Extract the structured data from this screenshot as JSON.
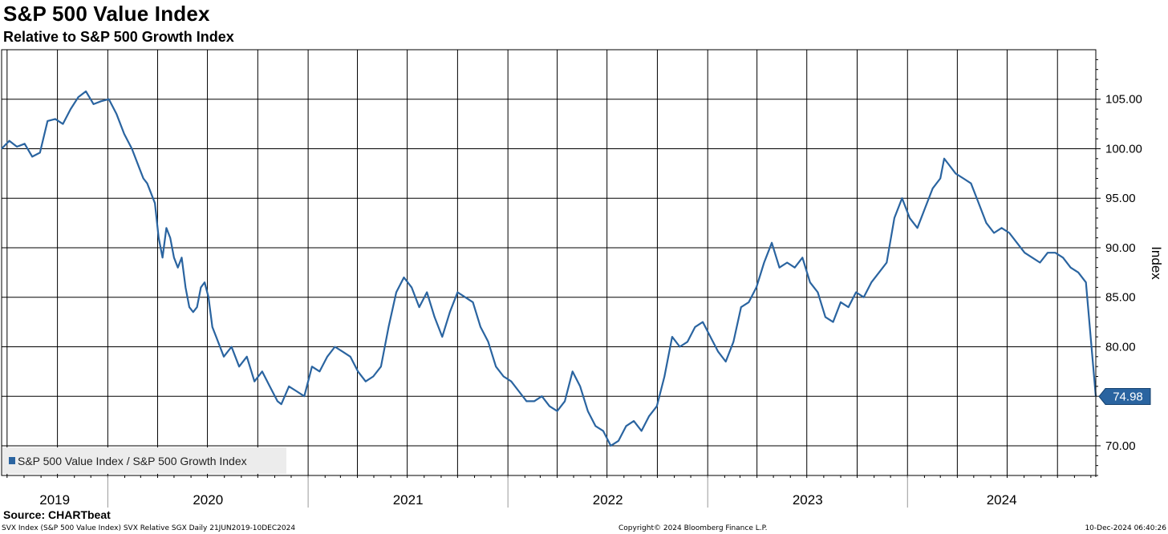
{
  "title": "S&P 500 Value Index",
  "subtitle": "Relative to S&P 500 Growth Index",
  "source": "Source: CHARTbeat",
  "footer": {
    "left": "SVX Index (S&P 500 Value Index) SVX Relative SGX  Daily 21JUN2019-10DEC2024",
    "center": "Copyright© 2024 Bloomberg Finance L.P.",
    "right": "10-Dec-2024 06:40:26"
  },
  "colors": {
    "line": "#2a64a0",
    "grid": "#000000",
    "badge": "#2a64a0"
  },
  "chart_data": {
    "type": "line",
    "title": "S&P 500 Value Index",
    "subtitle": "Relative to S&P 500 Growth Index",
    "ylabel": "Index",
    "ylim": [
      67,
      110
    ],
    "y_ticks": [
      70,
      75,
      80,
      85,
      90,
      95,
      100,
      105
    ],
    "y_tick_labels": [
      "70.00",
      "",
      "80.00",
      "85.00",
      "90.00",
      "95.00",
      "100.00",
      "105.00"
    ],
    "x_range": [
      "2019-06-21",
      "2024-12-10"
    ],
    "x_labels": [
      "2019",
      "2020",
      "2021",
      "2022",
      "2023",
      "2024"
    ],
    "grid": true,
    "legend_position": "bottom-left",
    "last_value_label": "74.98",
    "series": [
      {
        "name": "S&P 500 Value Index / S&P 500 Growth Index",
        "points": [
          [
            "2019-06-21",
            100.0
          ],
          [
            "2019-07-05",
            100.8
          ],
          [
            "2019-07-19",
            100.2
          ],
          [
            "2019-08-02",
            100.5
          ],
          [
            "2019-08-16",
            99.2
          ],
          [
            "2019-08-30",
            99.6
          ],
          [
            "2019-09-13",
            102.8
          ],
          [
            "2019-09-27",
            103.0
          ],
          [
            "2019-10-11",
            102.5
          ],
          [
            "2019-10-25",
            104.0
          ],
          [
            "2019-11-08",
            105.2
          ],
          [
            "2019-11-22",
            105.8
          ],
          [
            "2019-12-06",
            104.5
          ],
          [
            "2019-12-20",
            104.8
          ],
          [
            "2020-01-03",
            105.0
          ],
          [
            "2020-01-17",
            103.5
          ],
          [
            "2020-01-31",
            101.5
          ],
          [
            "2020-02-14",
            100.0
          ],
          [
            "2020-02-28",
            98.0
          ],
          [
            "2020-03-06",
            97.0
          ],
          [
            "2020-03-13",
            96.5
          ],
          [
            "2020-03-27",
            94.5
          ],
          [
            "2020-04-03",
            91.0
          ],
          [
            "2020-04-10",
            89.0
          ],
          [
            "2020-04-17",
            92.0
          ],
          [
            "2020-04-24",
            91.0
          ],
          [
            "2020-05-01",
            89.0
          ],
          [
            "2020-05-08",
            88.0
          ],
          [
            "2020-05-15",
            89.0
          ],
          [
            "2020-05-22",
            86.0
          ],
          [
            "2020-05-29",
            84.0
          ],
          [
            "2020-06-05",
            83.5
          ],
          [
            "2020-06-12",
            84.0
          ],
          [
            "2020-06-19",
            86.0
          ],
          [
            "2020-06-26",
            86.5
          ],
          [
            "2020-07-03",
            85.0
          ],
          [
            "2020-07-10",
            82.0
          ],
          [
            "2020-07-17",
            81.0
          ],
          [
            "2020-07-31",
            79.0
          ],
          [
            "2020-08-14",
            80.0
          ],
          [
            "2020-08-28",
            78.0
          ],
          [
            "2020-09-11",
            79.0
          ],
          [
            "2020-09-25",
            76.5
          ],
          [
            "2020-10-09",
            77.5
          ],
          [
            "2020-10-23",
            76.0
          ],
          [
            "2020-11-06",
            74.5
          ],
          [
            "2020-11-13",
            74.2
          ],
          [
            "2020-11-27",
            76.0
          ],
          [
            "2020-12-11",
            75.5
          ],
          [
            "2020-12-25",
            75.0
          ],
          [
            "2021-01-08",
            78.0
          ],
          [
            "2021-01-22",
            77.5
          ],
          [
            "2021-02-05",
            79.0
          ],
          [
            "2021-02-19",
            80.0
          ],
          [
            "2021-03-05",
            79.5
          ],
          [
            "2021-03-19",
            79.0
          ],
          [
            "2021-04-02",
            77.5
          ],
          [
            "2021-04-16",
            76.5
          ],
          [
            "2021-04-30",
            77.0
          ],
          [
            "2021-05-14",
            78.0
          ],
          [
            "2021-05-28",
            82.0
          ],
          [
            "2021-06-11",
            85.5
          ],
          [
            "2021-06-25",
            87.0
          ],
          [
            "2021-07-09",
            86.0
          ],
          [
            "2021-07-23",
            84.0
          ],
          [
            "2021-08-06",
            85.5
          ],
          [
            "2021-08-20",
            83.0
          ],
          [
            "2021-09-03",
            81.0
          ],
          [
            "2021-09-17",
            83.5
          ],
          [
            "2021-10-01",
            85.5
          ],
          [
            "2021-10-15",
            85.0
          ],
          [
            "2021-10-29",
            84.5
          ],
          [
            "2021-11-12",
            82.0
          ],
          [
            "2021-11-26",
            80.5
          ],
          [
            "2021-12-10",
            78.0
          ],
          [
            "2021-12-24",
            77.0
          ],
          [
            "2022-01-07",
            76.5
          ],
          [
            "2022-01-21",
            75.5
          ],
          [
            "2022-02-04",
            74.5
          ],
          [
            "2022-02-18",
            74.5
          ],
          [
            "2022-03-04",
            75.0
          ],
          [
            "2022-03-18",
            74.0
          ],
          [
            "2022-04-01",
            73.5
          ],
          [
            "2022-04-15",
            74.5
          ],
          [
            "2022-04-29",
            77.5
          ],
          [
            "2022-05-13",
            76.0
          ],
          [
            "2022-05-27",
            73.5
          ],
          [
            "2022-06-10",
            72.0
          ],
          [
            "2022-06-24",
            71.5
          ],
          [
            "2022-07-08",
            70.0
          ],
          [
            "2022-07-22",
            70.5
          ],
          [
            "2022-08-05",
            72.0
          ],
          [
            "2022-08-19",
            72.5
          ],
          [
            "2022-09-02",
            71.5
          ],
          [
            "2022-09-16",
            73.0
          ],
          [
            "2022-09-30",
            74.0
          ],
          [
            "2022-10-14",
            77.0
          ],
          [
            "2022-10-28",
            81.0
          ],
          [
            "2022-11-11",
            80.0
          ],
          [
            "2022-11-25",
            80.5
          ],
          [
            "2022-12-09",
            82.0
          ],
          [
            "2022-12-23",
            82.5
          ],
          [
            "2023-01-06",
            81.0
          ],
          [
            "2023-01-20",
            79.5
          ],
          [
            "2023-02-03",
            78.5
          ],
          [
            "2023-02-17",
            80.5
          ],
          [
            "2023-03-03",
            84.0
          ],
          [
            "2023-03-17",
            84.5
          ],
          [
            "2023-03-31",
            86.0
          ],
          [
            "2023-04-14",
            88.5
          ],
          [
            "2023-04-28",
            90.5
          ],
          [
            "2023-05-12",
            88.0
          ],
          [
            "2023-05-26",
            88.5
          ],
          [
            "2023-06-09",
            88.0
          ],
          [
            "2023-06-23",
            89.0
          ],
          [
            "2023-07-07",
            86.5
          ],
          [
            "2023-07-21",
            85.5
          ],
          [
            "2023-08-04",
            83.0
          ],
          [
            "2023-08-18",
            82.5
          ],
          [
            "2023-09-01",
            84.5
          ],
          [
            "2023-09-15",
            84.0
          ],
          [
            "2023-09-29",
            85.5
          ],
          [
            "2023-10-13",
            85.0
          ],
          [
            "2023-10-27",
            86.5
          ],
          [
            "2023-11-10",
            87.5
          ],
          [
            "2023-11-24",
            88.5
          ],
          [
            "2023-12-08",
            93.0
          ],
          [
            "2023-12-22",
            95.0
          ],
          [
            "2024-01-05",
            93.0
          ],
          [
            "2024-01-19",
            92.0
          ],
          [
            "2024-02-02",
            94.0
          ],
          [
            "2024-02-16",
            96.0
          ],
          [
            "2024-03-01",
            97.0
          ],
          [
            "2024-03-08",
            99.0
          ],
          [
            "2024-03-15",
            98.5
          ],
          [
            "2024-03-29",
            97.5
          ],
          [
            "2024-04-12",
            97.0
          ],
          [
            "2024-04-26",
            96.5
          ],
          [
            "2024-05-10",
            94.5
          ],
          [
            "2024-05-24",
            92.5
          ],
          [
            "2024-06-07",
            91.5
          ],
          [
            "2024-06-21",
            92.0
          ],
          [
            "2024-07-05",
            91.5
          ],
          [
            "2024-07-19",
            90.5
          ],
          [
            "2024-08-02",
            89.5
          ],
          [
            "2024-08-16",
            89.0
          ],
          [
            "2024-08-30",
            88.5
          ],
          [
            "2024-09-13",
            89.5
          ],
          [
            "2024-09-27",
            89.5
          ],
          [
            "2024-10-11",
            89.0
          ],
          [
            "2024-10-25",
            88.0
          ],
          [
            "2024-11-08",
            87.5
          ],
          [
            "2024-11-22",
            86.5
          ],
          [
            "2024-12-10",
            74.98
          ]
        ]
      }
    ]
  }
}
